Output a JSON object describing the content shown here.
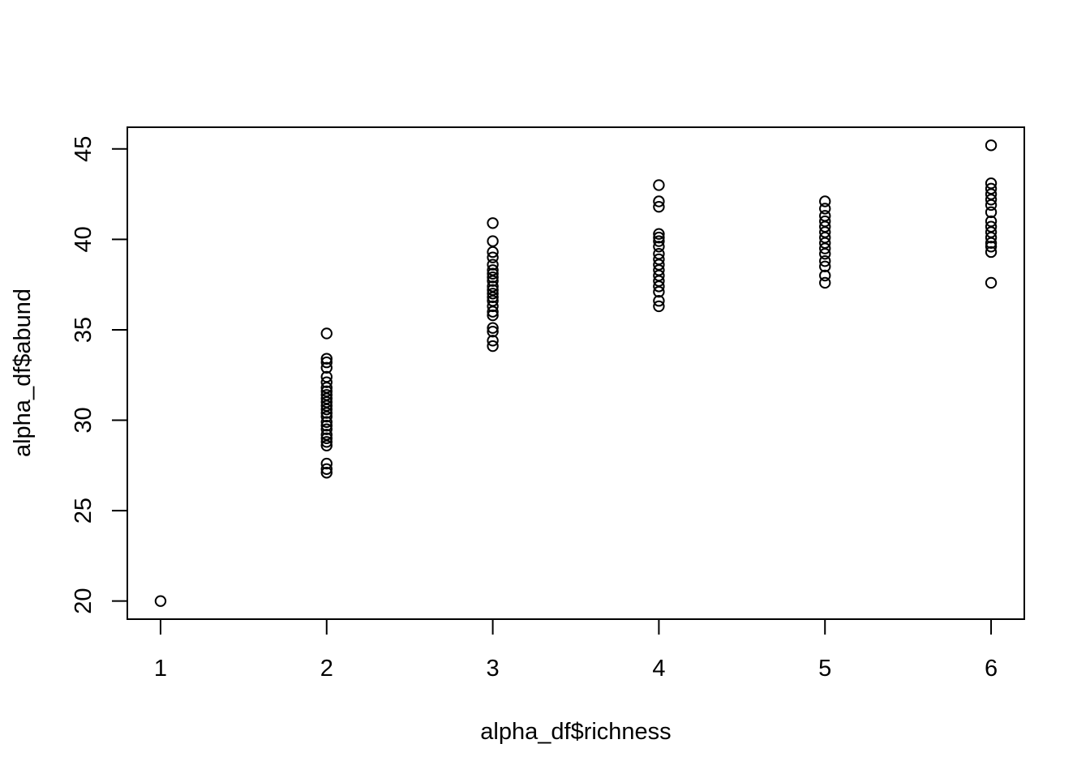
{
  "chart_data": {
    "type": "scatter",
    "title": "",
    "xlabel": "alpha_df$richness",
    "ylabel": "alpha_df$abund",
    "xlim": [
      0.8,
      6.2
    ],
    "ylim": [
      19.0,
      46.2
    ],
    "xticks": [
      1,
      2,
      3,
      4,
      5,
      6
    ],
    "yticks": [
      20,
      25,
      30,
      35,
      40,
      45
    ],
    "x_tick_labels": [
      "1",
      "2",
      "3",
      "4",
      "5",
      "6"
    ],
    "y_tick_labels": [
      "20",
      "25",
      "30",
      "35",
      "40",
      "45"
    ],
    "grid": false,
    "legend": "none",
    "marker": "open-circle",
    "points": [
      {
        "x": 1,
        "y": 20.0
      },
      {
        "x": 2,
        "y": 34.8
      },
      {
        "x": 2,
        "y": 33.4
      },
      {
        "x": 2,
        "y": 33.2
      },
      {
        "x": 2,
        "y": 32.9
      },
      {
        "x": 2,
        "y": 32.4
      },
      {
        "x": 2,
        "y": 32.1
      },
      {
        "x": 2,
        "y": 31.8
      },
      {
        "x": 2,
        "y": 31.6
      },
      {
        "x": 2,
        "y": 31.4
      },
      {
        "x": 2,
        "y": 31.2
      },
      {
        "x": 2,
        "y": 31.0
      },
      {
        "x": 2,
        "y": 30.8
      },
      {
        "x": 2,
        "y": 30.6
      },
      {
        "x": 2,
        "y": 30.4
      },
      {
        "x": 2,
        "y": 30.2
      },
      {
        "x": 2,
        "y": 29.9
      },
      {
        "x": 2,
        "y": 29.7
      },
      {
        "x": 2,
        "y": 29.5
      },
      {
        "x": 2,
        "y": 29.2
      },
      {
        "x": 2,
        "y": 29.0
      },
      {
        "x": 2,
        "y": 28.8
      },
      {
        "x": 2,
        "y": 28.6
      },
      {
        "x": 2,
        "y": 27.6
      },
      {
        "x": 2,
        "y": 27.3
      },
      {
        "x": 2,
        "y": 27.1
      },
      {
        "x": 3,
        "y": 40.9
      },
      {
        "x": 3,
        "y": 39.9
      },
      {
        "x": 3,
        "y": 39.3
      },
      {
        "x": 3,
        "y": 39.0
      },
      {
        "x": 3,
        "y": 38.6
      },
      {
        "x": 3,
        "y": 38.3
      },
      {
        "x": 3,
        "y": 38.1
      },
      {
        "x": 3,
        "y": 37.9
      },
      {
        "x": 3,
        "y": 37.7
      },
      {
        "x": 3,
        "y": 37.4
      },
      {
        "x": 3,
        "y": 37.2
      },
      {
        "x": 3,
        "y": 37.0
      },
      {
        "x": 3,
        "y": 36.8
      },
      {
        "x": 3,
        "y": 36.6
      },
      {
        "x": 3,
        "y": 36.3
      },
      {
        "x": 3,
        "y": 36.0
      },
      {
        "x": 3,
        "y": 35.8
      },
      {
        "x": 3,
        "y": 35.1
      },
      {
        "x": 3,
        "y": 34.9
      },
      {
        "x": 3,
        "y": 34.4
      },
      {
        "x": 3,
        "y": 34.1
      },
      {
        "x": 4,
        "y": 43.0
      },
      {
        "x": 4,
        "y": 42.1
      },
      {
        "x": 4,
        "y": 41.8
      },
      {
        "x": 4,
        "y": 40.3
      },
      {
        "x": 4,
        "y": 40.1
      },
      {
        "x": 4,
        "y": 39.9
      },
      {
        "x": 4,
        "y": 39.6
      },
      {
        "x": 4,
        "y": 39.2
      },
      {
        "x": 4,
        "y": 38.9
      },
      {
        "x": 4,
        "y": 38.6
      },
      {
        "x": 4,
        "y": 38.3
      },
      {
        "x": 4,
        "y": 38.0
      },
      {
        "x": 4,
        "y": 37.7
      },
      {
        "x": 4,
        "y": 37.4
      },
      {
        "x": 4,
        "y": 37.1
      },
      {
        "x": 4,
        "y": 36.6
      },
      {
        "x": 4,
        "y": 36.3
      },
      {
        "x": 5,
        "y": 42.1
      },
      {
        "x": 5,
        "y": 41.7
      },
      {
        "x": 5,
        "y": 41.3
      },
      {
        "x": 5,
        "y": 41.0
      },
      {
        "x": 5,
        "y": 40.7
      },
      {
        "x": 5,
        "y": 40.4
      },
      {
        "x": 5,
        "y": 40.1
      },
      {
        "x": 5,
        "y": 39.8
      },
      {
        "x": 5,
        "y": 39.5
      },
      {
        "x": 5,
        "y": 39.2
      },
      {
        "x": 5,
        "y": 38.8
      },
      {
        "x": 5,
        "y": 38.5
      },
      {
        "x": 5,
        "y": 38.0
      },
      {
        "x": 5,
        "y": 37.6
      },
      {
        "x": 6,
        "y": 45.2
      },
      {
        "x": 6,
        "y": 43.1
      },
      {
        "x": 6,
        "y": 42.8
      },
      {
        "x": 6,
        "y": 42.5
      },
      {
        "x": 6,
        "y": 42.2
      },
      {
        "x": 6,
        "y": 41.9
      },
      {
        "x": 6,
        "y": 41.5
      },
      {
        "x": 6,
        "y": 41.0
      },
      {
        "x": 6,
        "y": 40.7
      },
      {
        "x": 6,
        "y": 40.4
      },
      {
        "x": 6,
        "y": 40.1
      },
      {
        "x": 6,
        "y": 39.8
      },
      {
        "x": 6,
        "y": 39.6
      },
      {
        "x": 6,
        "y": 39.3
      },
      {
        "x": 6,
        "y": 37.6
      }
    ]
  }
}
